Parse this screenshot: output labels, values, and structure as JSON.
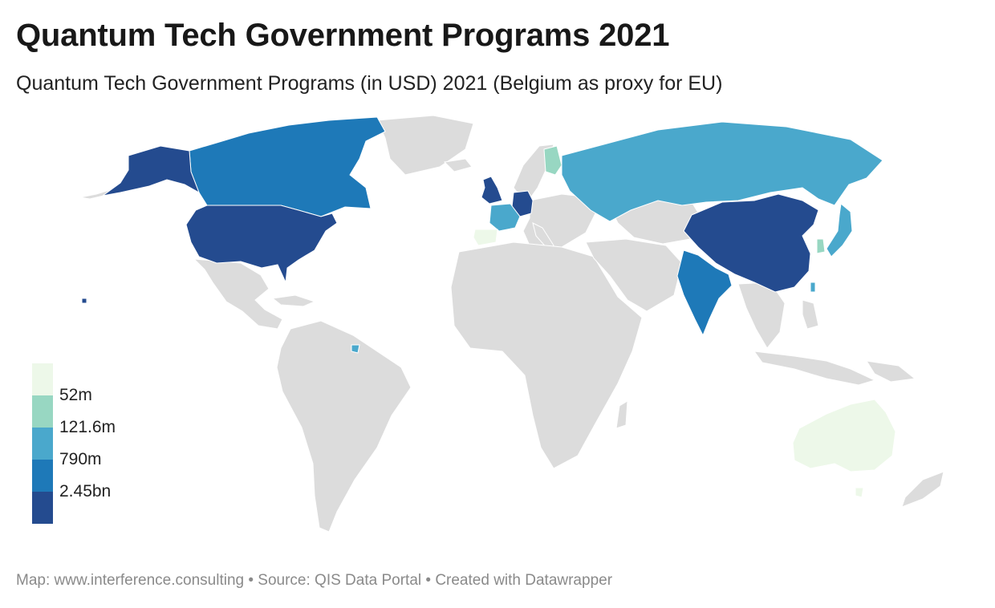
{
  "header": {
    "title": "Quantum Tech Government Programs 2021",
    "subtitle": "Quantum Tech Government Programs (in USD) 2021 (Belgium as proxy for EU)"
  },
  "legend": {
    "bins": [
      {
        "color": "#edf8e9",
        "label": ""
      },
      {
        "color": "#98d7c2",
        "label": "52m"
      },
      {
        "color": "#4aa8cc",
        "label": "121.6m"
      },
      {
        "color": "#1e79b8",
        "label": "790m"
      },
      {
        "color": "#244b8f",
        "label": "2.45bn"
      }
    ]
  },
  "map": {
    "no_data_color": "#dcdcdc",
    "highlighted_countries": [
      {
        "name": "United States",
        "bin": 4
      },
      {
        "name": "China",
        "bin": 4
      },
      {
        "name": "Germany",
        "bin": 4
      },
      {
        "name": "United Kingdom",
        "bin": 4
      },
      {
        "name": "Canada",
        "bin": 3
      },
      {
        "name": "India",
        "bin": 3
      },
      {
        "name": "Russia",
        "bin": 2
      },
      {
        "name": "Japan",
        "bin": 2
      },
      {
        "name": "France",
        "bin": 2
      },
      {
        "name": "Finland",
        "bin": 1
      },
      {
        "name": "South Korea",
        "bin": 1
      },
      {
        "name": "Spain",
        "bin": 0
      },
      {
        "name": "Australia",
        "bin": 0
      }
    ]
  },
  "footer": {
    "text": "Map: www.interference.consulting • Source: QIS Data Portal • Created with Datawrapper"
  }
}
